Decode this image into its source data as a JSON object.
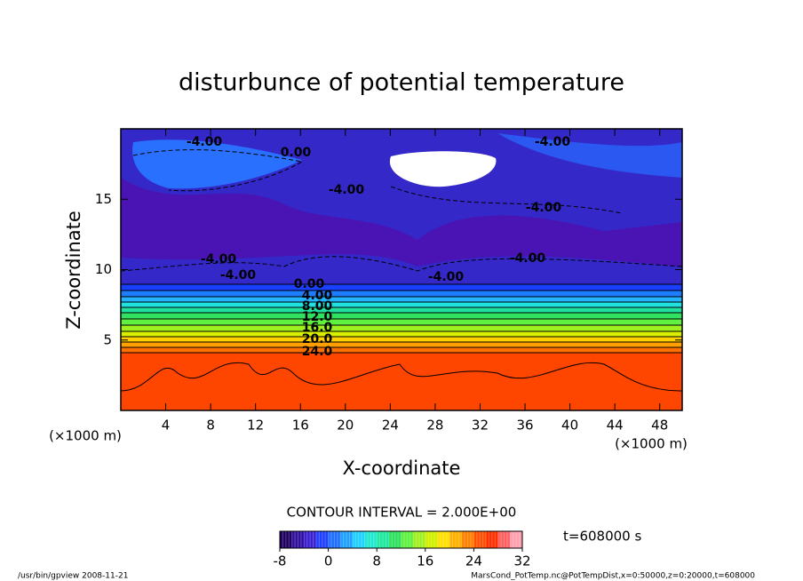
{
  "chart_data": {
    "type": "contour",
    "title": "disturbunce of potential temperature",
    "x_label": "X-coordinate",
    "y_label": "Z-coordinate",
    "x_unit": "(×1000 m)",
    "y_unit": "(×1000 m)",
    "xlim": [
      0,
      50
    ],
    "xticks": [
      4,
      8,
      12,
      16,
      20,
      24,
      28,
      32,
      36,
      40,
      44,
      48
    ],
    "ylim": [
      0,
      20
    ],
    "yticks": [
      5,
      10,
      15
    ],
    "contour_labels": [
      {
        "value": -4,
        "label": "-4.00"
      },
      {
        "value": 0,
        "label": "0.00"
      },
      {
        "value": -4,
        "label": "-4.00"
      },
      {
        "value": -4,
        "label": "-4.00"
      },
      {
        "value": -4,
        "label": "-4.00"
      },
      {
        "value": -4,
        "label": "-4.00"
      },
      {
        "value": -4,
        "label": "-4.00"
      },
      {
        "value": -4,
        "label": "-4.00"
      },
      {
        "value": -4,
        "label": "-4.00"
      },
      {
        "value": 0,
        "label": "0.00"
      },
      {
        "value": 4,
        "label": "4.00"
      },
      {
        "value": 8,
        "label": "8.00"
      },
      {
        "value": 12,
        "label": "12.0"
      },
      {
        "value": 16,
        "label": "16.0"
      },
      {
        "value": 20,
        "label": "20.0"
      },
      {
        "value": 24,
        "label": "24.0"
      }
    ],
    "contour_interval_text": "CONTOUR INTERVAL = 2.000E+00",
    "time_text": "t=608000 s",
    "colorbar": {
      "clim": [
        -8,
        32
      ],
      "ticks": [
        -8,
        0,
        8,
        16,
        24,
        32
      ],
      "colors": [
        "#200060",
        "#3010a0",
        "#3a20d0",
        "#2040ff",
        "#2070ff",
        "#20a0ff",
        "#20d0ff",
        "#20e8d0",
        "#20e8a0",
        "#30e060",
        "#60f040",
        "#a0f020",
        "#d0f000",
        "#ffe000",
        "#ffb000",
        "#ff8000",
        "#ff5000",
        "#ff3000",
        "#ff6060",
        "#ffa0b0"
      ]
    },
    "footer_left": "/usr/bin/gpview   2008-11-21",
    "footer_right": "MarsCond_PotTemp.nc@PotTempDist,x=0:50000,z=0:20000,t=608000"
  }
}
